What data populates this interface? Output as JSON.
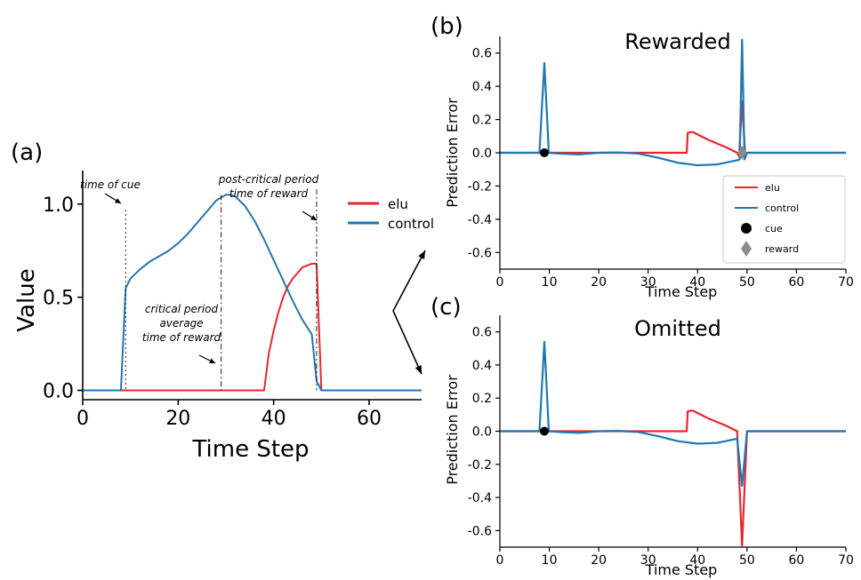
{
  "colors": {
    "elu": "#e8262a",
    "control": "#1f77b4",
    "cue": "#000000",
    "reward": "#8c8c8c",
    "arrow": "#000000"
  },
  "chart_data": [
    {
      "panel": "(a)",
      "type": "line",
      "title": "",
      "xlabel": "Time Step",
      "ylabel": "Value",
      "xlim": [
        0,
        71
      ],
      "ylim": [
        -0.05,
        1.18
      ],
      "xticks": [
        0,
        20,
        40,
        60
      ],
      "yticks": [
        0.0,
        0.5,
        1.0
      ],
      "ytick_labels": [
        "0.0",
        "0.5",
        "1.0"
      ],
      "grid": false,
      "legend_position": "outside-right",
      "series": [
        {
          "name": "elu",
          "color": "#e8262a",
          "x": [
            0,
            38,
            39,
            40,
            41,
            42,
            43,
            44,
            45,
            46,
            47,
            48,
            49,
            50,
            71
          ],
          "y": [
            0,
            0,
            0.2,
            0.32,
            0.42,
            0.5,
            0.56,
            0.6,
            0.63,
            0.66,
            0.67,
            0.68,
            0.68,
            0,
            0
          ]
        },
        {
          "name": "control",
          "color": "#1f77b4",
          "x": [
            0,
            8,
            9,
            10,
            12,
            14,
            16,
            18,
            20,
            22,
            24,
            26,
            28,
            30,
            31,
            32,
            34,
            36,
            38,
            40,
            42,
            44,
            46,
            48,
            49,
            50,
            71
          ],
          "y": [
            0,
            0,
            0.55,
            0.6,
            0.65,
            0.69,
            0.72,
            0.75,
            0.79,
            0.84,
            0.9,
            0.96,
            1.02,
            1.05,
            1.05,
            1.04,
            0.99,
            0.91,
            0.81,
            0.7,
            0.59,
            0.48,
            0.38,
            0.3,
            0.05,
            0,
            0
          ]
        }
      ],
      "annotations": [
        {
          "text": "time of cue",
          "x": 9,
          "lines": []
        },
        {
          "text": "critical period",
          "lines": [
            "critical period",
            "average",
            "time of reward"
          ],
          "x": 29
        },
        {
          "text": "post-critical period",
          "lines": [
            "post-critical period",
            "time of reward"
          ],
          "x": 49
        }
      ]
    },
    {
      "panel": "(b)",
      "type": "line",
      "title": "Rewarded",
      "xlabel": "Time Step",
      "ylabel": "Prediction Error",
      "xlim": [
        0,
        70
      ],
      "ylim": [
        -0.7,
        0.7
      ],
      "xticks": [
        0,
        10,
        20,
        30,
        40,
        50,
        60,
        70
      ],
      "yticks": [
        -0.6,
        -0.4,
        -0.2,
        0.0,
        0.2,
        0.4,
        0.6
      ],
      "ytick_labels": [
        "-0.6",
        "-0.4",
        "-0.2",
        "0.0",
        "0.2",
        "0.4",
        "0.6"
      ],
      "grid": false,
      "legend_position": "lower-right",
      "series": [
        {
          "name": "elu",
          "color": "#e8262a",
          "x": [
            0,
            37.8,
            38,
            39,
            40,
            42,
            44,
            46,
            48,
            48.4,
            49,
            49.6,
            50,
            70
          ],
          "y": [
            0,
            0,
            0.12,
            0.125,
            0.11,
            0.08,
            0.055,
            0.03,
            0.0,
            -0.02,
            0.31,
            0.0,
            0,
            0
          ]
        },
        {
          "name": "control",
          "color": "#1f77b4",
          "x": [
            0,
            8,
            9,
            9.9,
            10,
            12,
            16,
            20,
            24,
            28,
            32,
            36,
            40,
            44,
            48,
            48.5,
            49,
            49.5,
            50,
            70
          ],
          "y": [
            0,
            0,
            0.54,
            0.0,
            0.0,
            -0.005,
            -0.01,
            0.0,
            0.002,
            -0.005,
            -0.03,
            -0.06,
            -0.075,
            -0.07,
            -0.045,
            -0.04,
            0.68,
            -0.04,
            0,
            0
          ]
        }
      ],
      "markers": [
        {
          "name": "cue",
          "shape": "circle",
          "x": 9,
          "y": 0
        },
        {
          "name": "reward",
          "shape": "diamond",
          "x": 49,
          "y": 0
        }
      ],
      "legend": [
        "elu",
        "control",
        "cue",
        "reward"
      ]
    },
    {
      "panel": "(c)",
      "type": "line",
      "title": "Omitted",
      "xlabel": "Time Step",
      "ylabel": "Prediction Error",
      "xlim": [
        0,
        70
      ],
      "ylim": [
        -0.7,
        0.7
      ],
      "xticks": [
        0,
        10,
        20,
        30,
        40,
        50,
        60,
        70
      ],
      "yticks": [
        -0.6,
        -0.4,
        -0.2,
        0.0,
        0.2,
        0.4,
        0.6
      ],
      "ytick_labels": [
        "-0.6",
        "-0.4",
        "-0.2",
        "0.0",
        "0.2",
        "0.4",
        "0.6"
      ],
      "grid": false,
      "series": [
        {
          "name": "elu",
          "color": "#e8262a",
          "x": [
            0,
            37.8,
            38,
            39,
            40,
            42,
            44,
            46,
            48,
            49,
            50,
            70
          ],
          "y": [
            0,
            0,
            0.12,
            0.125,
            0.11,
            0.08,
            0.055,
            0.03,
            0.0,
            -0.69,
            0,
            0
          ]
        },
        {
          "name": "control",
          "color": "#1f77b4",
          "x": [
            0,
            8,
            9,
            9.9,
            10,
            12,
            16,
            20,
            24,
            28,
            32,
            36,
            40,
            44,
            48,
            49,
            50,
            70
          ],
          "y": [
            0,
            0,
            0.54,
            0.0,
            0.0,
            -0.005,
            -0.01,
            0.0,
            0.002,
            -0.005,
            -0.03,
            -0.06,
            -0.075,
            -0.07,
            -0.045,
            -0.33,
            0,
            0
          ]
        }
      ],
      "markers": [
        {
          "name": "cue",
          "shape": "circle",
          "x": 9,
          "y": 0
        }
      ]
    }
  ]
}
